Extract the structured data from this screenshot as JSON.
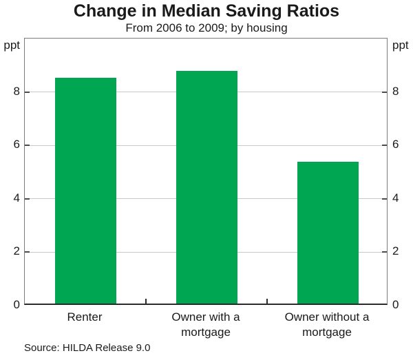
{
  "chart_data": {
    "type": "bar",
    "title": "Change in Median Saving Ratios",
    "subtitle": "From 2006 to 2009; by housing",
    "unit_left": "ppt",
    "unit_right": "ppt",
    "categories": [
      "Renter",
      "Owner with a\nmortgage",
      "Owner without a\nmortgage"
    ],
    "values": [
      8.45,
      8.7,
      5.3
    ],
    "yticks": [
      0,
      2,
      4,
      6,
      8
    ],
    "ylim": [
      0,
      10
    ],
    "grid": true,
    "legend_position": "none",
    "bar_color": "#00a651",
    "source": "Source: HILDA Release 9.0"
  }
}
